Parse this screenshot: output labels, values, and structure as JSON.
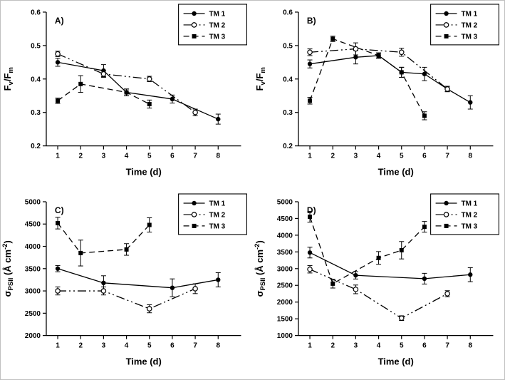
{
  "figure": {
    "background": "#ffffff",
    "ink": "#000000",
    "description": "Four-panel line chart figure with error bars"
  },
  "chart_data": [
    {
      "type": "line",
      "panel_label": "A)",
      "xlabel": "Time (d)",
      "ylabel": "Fv/Fm",
      "ylabel_parts": [
        {
          "t": "F"
        },
        {
          "t": "v",
          "sub": true
        },
        {
          "t": "/F"
        },
        {
          "t": "m",
          "sub": true
        }
      ],
      "xlim": [
        0.5,
        9.0
      ],
      "ylim": [
        0.2,
        0.6
      ],
      "xticks": [
        1,
        2,
        3,
        4,
        5,
        6,
        7,
        8
      ],
      "xticklabels": [
        "1",
        "2",
        "3",
        "4",
        "5",
        "6",
        "7",
        "8"
      ],
      "yticks": [
        0.2,
        0.3,
        0.4,
        0.5,
        0.6
      ],
      "yticklabels": [
        "0.2",
        "0.3",
        "0.4",
        "0.5",
        "0.6"
      ],
      "legend_position": "top-right",
      "series": [
        {
          "name": "TM 1",
          "marker": "filled-circle",
          "line": "solid",
          "x": [
            1,
            3,
            4,
            6,
            8
          ],
          "y": [
            0.45,
            0.425,
            0.36,
            0.34,
            0.28
          ],
          "yerr": [
            0.012,
            0.018,
            0.01,
            0.012,
            0.015
          ]
        },
        {
          "name": "TM 2",
          "marker": "open-circle",
          "line": "dash-dot",
          "x": [
            1,
            3,
            5,
            7
          ],
          "y": [
            0.475,
            0.415,
            0.4,
            0.3
          ],
          "yerr": [
            0.008,
            0.01,
            0.008,
            0.01
          ]
        },
        {
          "name": "TM 3",
          "marker": "filled-square",
          "line": "dash",
          "x": [
            1,
            2,
            4,
            5
          ],
          "y": [
            0.335,
            0.385,
            0.36,
            0.325
          ],
          "yerr": [
            0.008,
            0.025,
            0.01,
            0.012
          ]
        }
      ]
    },
    {
      "type": "line",
      "panel_label": "B)",
      "xlabel": "Time (d)",
      "ylabel": "Fv/Fm",
      "ylabel_parts": [
        {
          "t": "F"
        },
        {
          "t": "v",
          "sub": true
        },
        {
          "t": "/F"
        },
        {
          "t": "m",
          "sub": true
        }
      ],
      "xlim": [
        0.5,
        9.0
      ],
      "ylim": [
        0.2,
        0.6
      ],
      "xticks": [
        1,
        2,
        3,
        4,
        5,
        6,
        7,
        8
      ],
      "xticklabels": [
        "1",
        "2",
        "3",
        "4",
        "5",
        "6",
        "7",
        "8"
      ],
      "yticks": [
        0.2,
        0.3,
        0.4,
        0.5,
        0.6
      ],
      "yticklabels": [
        "0.2",
        "0.3",
        "0.4",
        "0.5",
        "0.6"
      ],
      "legend_position": "top-right",
      "series": [
        {
          "name": "TM 1",
          "marker": "filled-circle",
          "line": "solid",
          "x": [
            1,
            3,
            4,
            5,
            6,
            7,
            8
          ],
          "y": [
            0.445,
            0.465,
            0.47,
            0.42,
            0.415,
            0.37,
            0.33
          ],
          "yerr": [
            0.012,
            0.02,
            0.008,
            0.015,
            0.02,
            0.008,
            0.02
          ]
        },
        {
          "name": "TM 2",
          "marker": "open-circle",
          "line": "dash-dot",
          "x": [
            1,
            3,
            5,
            7
          ],
          "y": [
            0.48,
            0.49,
            0.48,
            0.37
          ],
          "yerr": [
            0.01,
            0.018,
            0.012,
            0.008
          ]
        },
        {
          "name": "TM 3",
          "marker": "filled-square",
          "line": "dash",
          "x": [
            1,
            2,
            4,
            5,
            6
          ],
          "y": [
            0.335,
            0.52,
            0.47,
            0.42,
            0.29
          ],
          "yerr": [
            0.01,
            0.008,
            0.008,
            0.015,
            0.012
          ]
        }
      ]
    },
    {
      "type": "line",
      "panel_label": "C)",
      "xlabel": "Time (d)",
      "ylabel": "σPSII (Å cm-2)",
      "ylabel_parts": [
        {
          "t": "σ"
        },
        {
          "t": "PSII",
          "sub": true
        },
        {
          "t": " (Å cm"
        },
        {
          "t": "-2",
          "sup": true
        },
        {
          "t": ")"
        }
      ],
      "xlim": [
        0.5,
        9.0
      ],
      "ylim": [
        2000,
        5000
      ],
      "xticks": [
        1,
        2,
        3,
        4,
        5,
        6,
        7,
        8
      ],
      "xticklabels": [
        "1",
        "2",
        "3",
        "4",
        "5",
        "6",
        "7",
        "8"
      ],
      "yticks": [
        2000,
        2500,
        3000,
        3500,
        4000,
        4500,
        5000
      ],
      "yticklabels": [
        "2000",
        "2500",
        "3000",
        "3500",
        "4000",
        "4500",
        "5000"
      ],
      "legend_position": "top-right",
      "series": [
        {
          "name": "TM 1",
          "marker": "filled-circle",
          "line": "solid",
          "x": [
            1,
            3,
            6,
            8
          ],
          "y": [
            3500,
            3180,
            3070,
            3250
          ],
          "yerr": [
            70,
            160,
            200,
            160
          ]
        },
        {
          "name": "TM 2",
          "marker": "open-circle",
          "line": "dash-dot",
          "x": [
            1,
            3,
            5,
            7
          ],
          "y": [
            3000,
            3000,
            2600,
            3050
          ],
          "yerr": [
            90,
            90,
            90,
            110
          ]
        },
        {
          "name": "TM 3",
          "marker": "filled-square",
          "line": "dash",
          "x": [
            1,
            2,
            4,
            5
          ],
          "y": [
            4520,
            3850,
            3930,
            4480
          ],
          "yerr": [
            130,
            290,
            130,
            160
          ]
        }
      ]
    },
    {
      "type": "line",
      "panel_label": "D)",
      "xlabel": "Time (d)",
      "ylabel": "σPSII (Å cm-2)",
      "ylabel_parts": [
        {
          "t": "σ"
        },
        {
          "t": "PSII",
          "sub": true
        },
        {
          "t": " (Å cm"
        },
        {
          "t": "-2",
          "sup": true
        },
        {
          "t": ")"
        }
      ],
      "xlim": [
        0.5,
        9.0
      ],
      "ylim": [
        1000,
        5000
      ],
      "xticks": [
        1,
        2,
        3,
        4,
        5,
        6,
        7,
        8
      ],
      "xticklabels": [
        "1",
        "2",
        "3",
        "4",
        "5",
        "6",
        "7",
        "8"
      ],
      "yticks": [
        1000,
        1500,
        2000,
        2500,
        3000,
        3500,
        4000,
        4500,
        5000
      ],
      "yticklabels": [
        "1000",
        "1500",
        "2000",
        "2500",
        "3000",
        "3500",
        "4000",
        "4500",
        "5000"
      ],
      "legend_position": "top-right",
      "series": [
        {
          "name": "TM 1",
          "marker": "filled-circle",
          "line": "solid",
          "x": [
            1,
            3,
            6,
            8
          ],
          "y": [
            3480,
            2800,
            2700,
            2820
          ],
          "yerr": [
            160,
            110,
            160,
            210
          ]
        },
        {
          "name": "TM 2",
          "marker": "open-circle",
          "line": "dash-dot",
          "x": [
            1,
            3,
            5,
            7
          ],
          "y": [
            2980,
            2380,
            1520,
            2250
          ],
          "yerr": [
            110,
            130,
            70,
            90
          ]
        },
        {
          "name": "TM 3",
          "marker": "filled-square",
          "line": "dash",
          "x": [
            1,
            2,
            4,
            5,
            6
          ],
          "y": [
            4550,
            2550,
            3320,
            3550,
            4250
          ],
          "yerr": [
            160,
            130,
            190,
            260,
            160
          ]
        }
      ]
    }
  ]
}
